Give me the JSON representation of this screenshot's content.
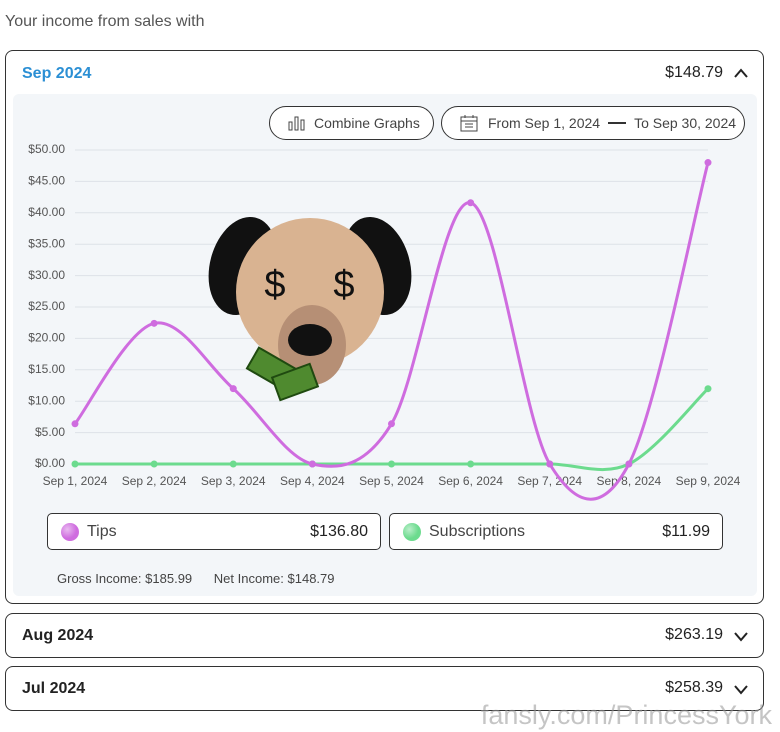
{
  "header": {
    "subtitle": "Your income from sales with"
  },
  "months": [
    {
      "label": "Sep 2024",
      "total": "$148.79"
    },
    {
      "label": "Aug 2024",
      "total": "$263.19"
    },
    {
      "label": "Jul 2024",
      "total": "$258.39"
    }
  ],
  "controls": {
    "combine": "Combine Graphs",
    "from": "From Sep 1, 2024",
    "to": "To Sep 30, 2024"
  },
  "chart_data": {
    "type": "line",
    "categories": [
      "Sep 1, 2024",
      "Sep 2, 2024",
      "Sep 3, 2024",
      "Sep 4, 2024",
      "Sep 5, 2024",
      "Sep 6, 2024",
      "Sep 7, 2024",
      "Sep 8, 2024",
      "Sep 9, 2024"
    ],
    "series": [
      {
        "name": "Tips",
        "color": "#cf6cdf",
        "values": [
          6.4,
          22.4,
          12.0,
          0,
          6.4,
          41.6,
          0,
          0,
          48.0
        ]
      },
      {
        "name": "Subscriptions",
        "color": "#6cdb8e",
        "values": [
          0,
          0,
          0,
          0,
          0,
          0,
          0,
          0,
          11.99
        ]
      }
    ],
    "ylim": [
      0,
      50
    ],
    "yticks": [
      {
        "value": 0,
        "label": "$0.00"
      },
      {
        "value": 5,
        "label": "$5.00"
      },
      {
        "value": 10,
        "label": "$10.00"
      },
      {
        "value": 15,
        "label": "$15.00"
      },
      {
        "value": 20,
        "label": "$20.00"
      },
      {
        "value": 25,
        "label": "$25.00"
      },
      {
        "value": 30,
        "label": "$30.00"
      },
      {
        "value": 35,
        "label": "$35.00"
      },
      {
        "value": 40,
        "label": "$40.00"
      },
      {
        "value": 45,
        "label": "$45.00"
      },
      {
        "value": 50,
        "label": "$50.00"
      }
    ],
    "grid": true
  },
  "legend_totals": [
    "$136.80",
    "$11.99"
  ],
  "summary": {
    "gross_label": "Gross Income:",
    "gross": "$185.99",
    "net_label": "Net Income:",
    "net": "$148.79"
  },
  "sticker": {
    "left_eye": "$",
    "right_eye": "$"
  },
  "watermark": "fansly.com/PrincessYork"
}
